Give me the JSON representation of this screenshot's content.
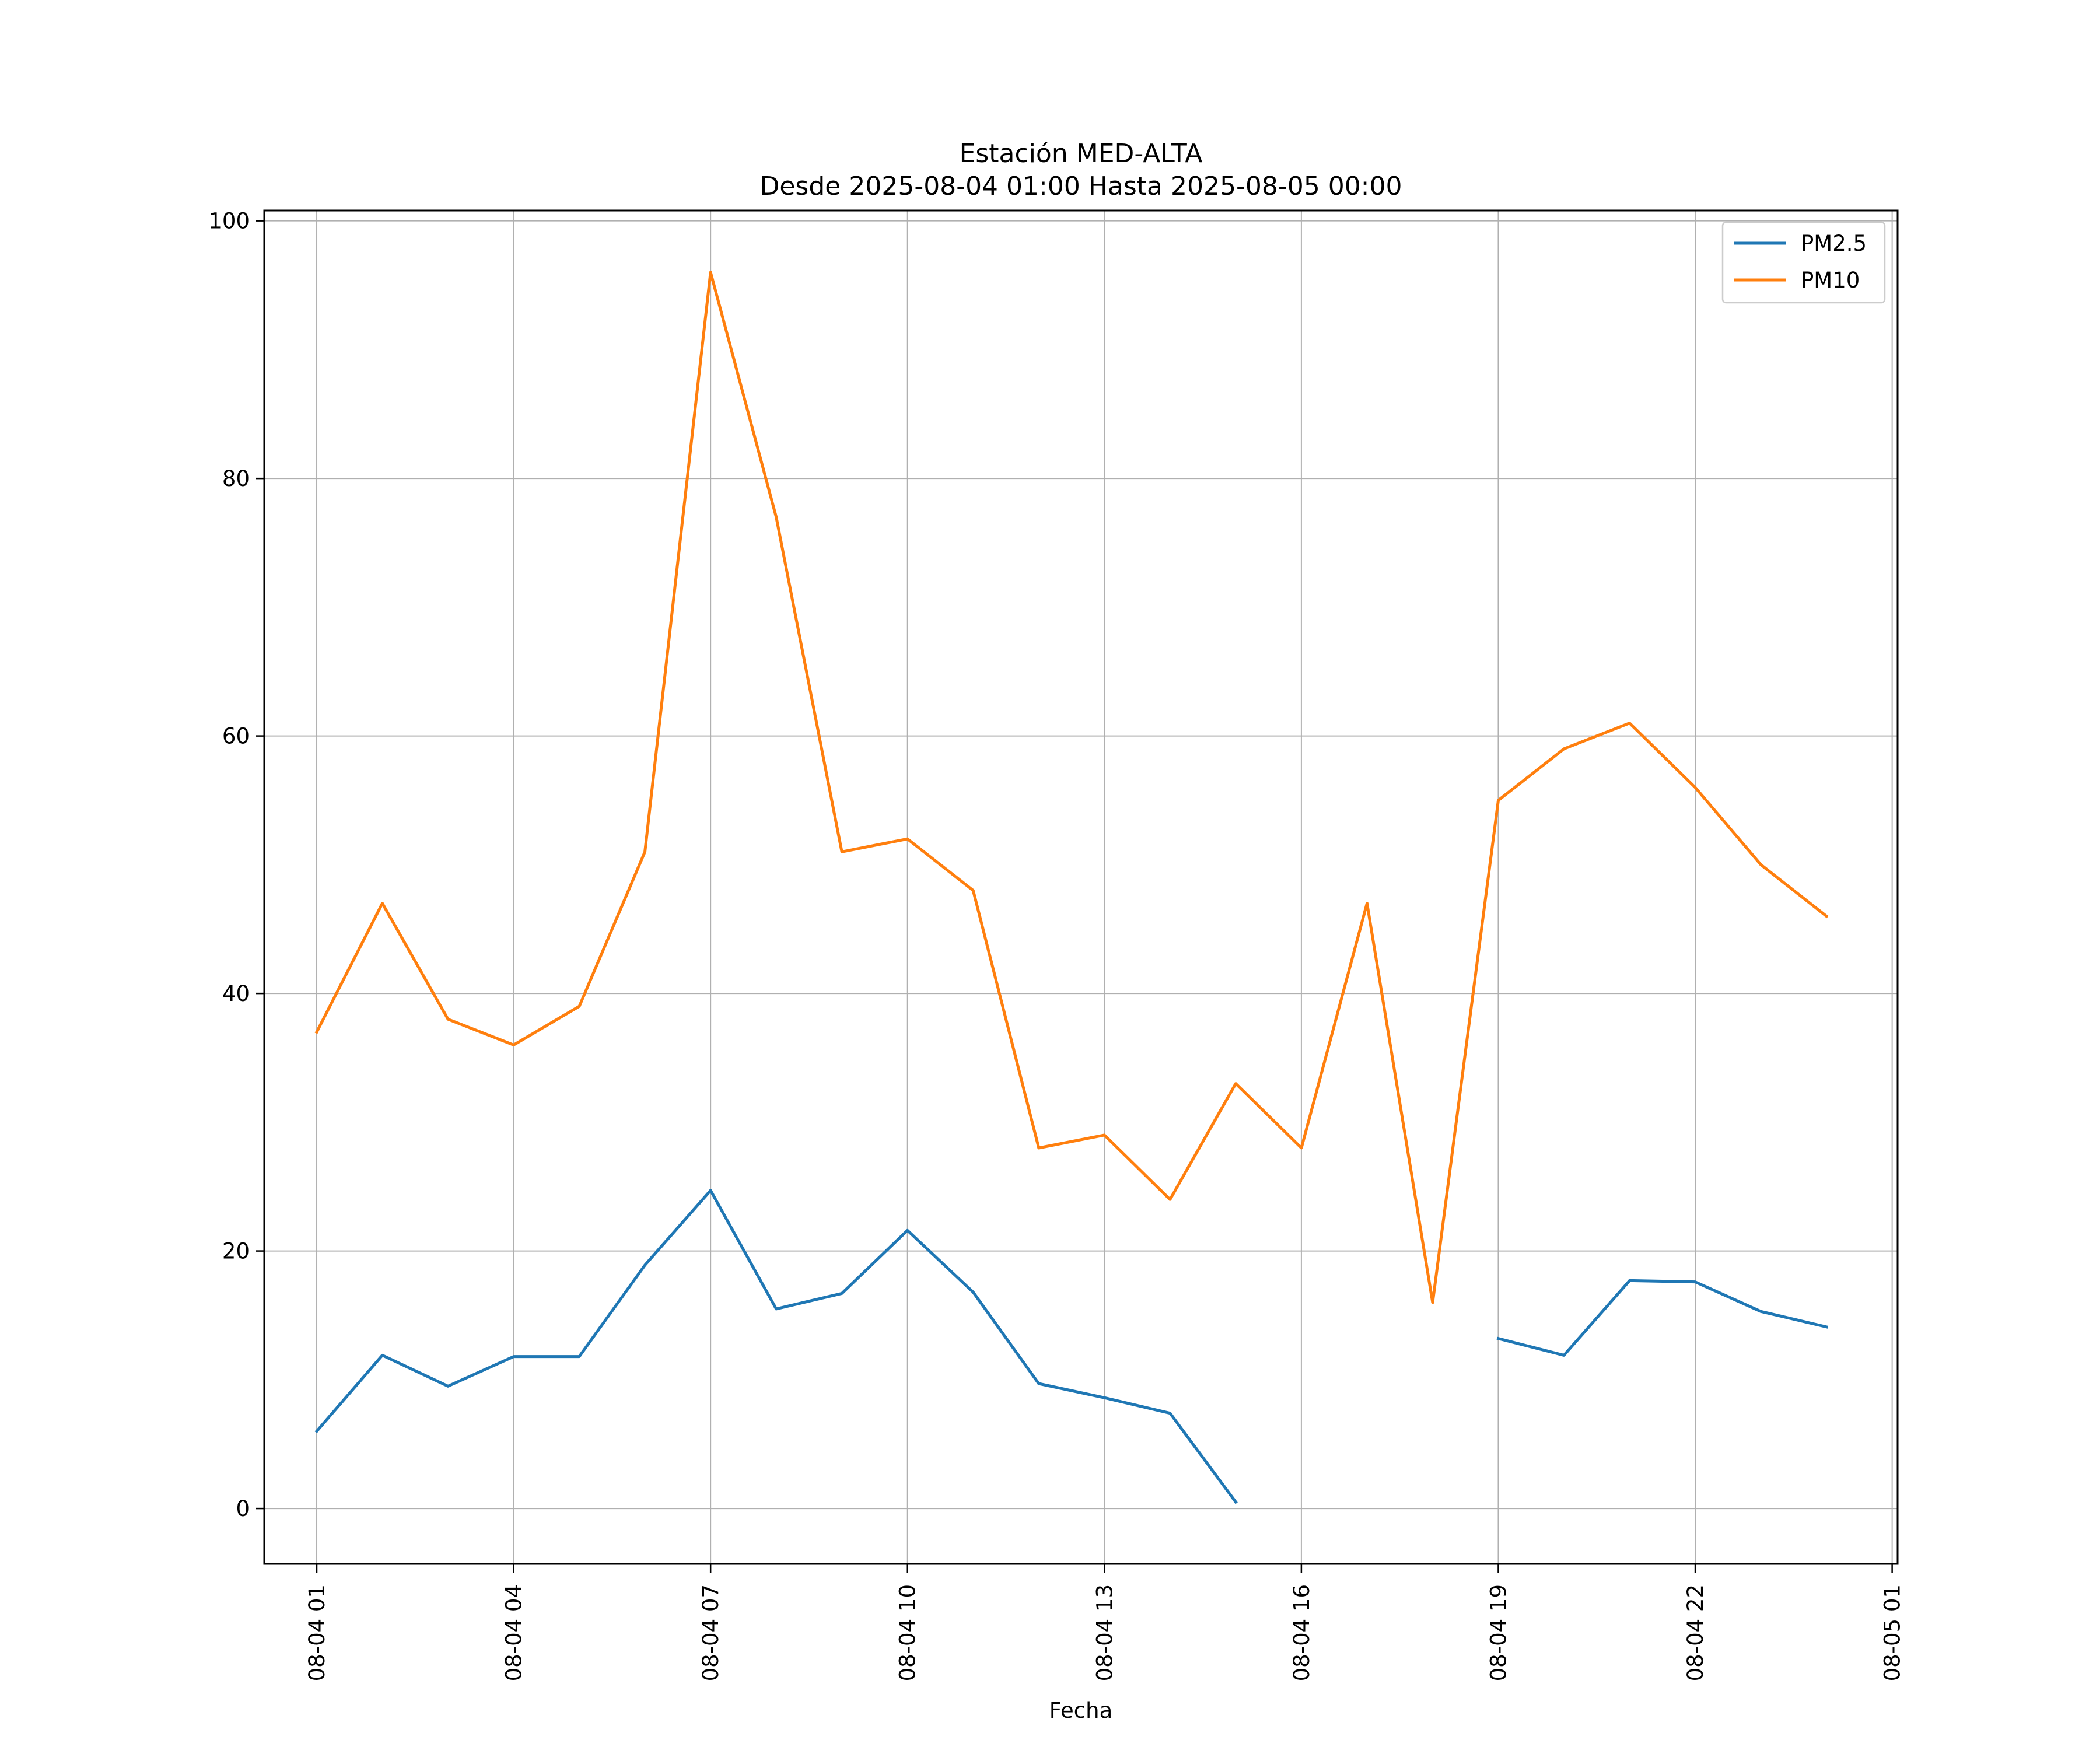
{
  "chart_data": {
    "type": "line",
    "title": "Estación MED-ALTA",
    "subtitle": "Desde 2025-08-04 01:00 Hasta 2025-08-05 00:00",
    "xlabel": "Fecha",
    "ylabel": "",
    "x": [
      "2025-08-04 01:00",
      "2025-08-04 02:00",
      "2025-08-04 03:00",
      "2025-08-04 04:00",
      "2025-08-04 05:00",
      "2025-08-04 06:00",
      "2025-08-04 07:00",
      "2025-08-04 08:00",
      "2025-08-04 09:00",
      "2025-08-04 10:00",
      "2025-08-04 11:00",
      "2025-08-04 12:00",
      "2025-08-04 13:00",
      "2025-08-04 14:00",
      "2025-08-04 15:00",
      "2025-08-04 16:00",
      "2025-08-04 17:00",
      "2025-08-04 18:00",
      "2025-08-04 19:00",
      "2025-08-04 20:00",
      "2025-08-04 21:00",
      "2025-08-04 22:00",
      "2025-08-04 23:00",
      "2025-08-05 00:00"
    ],
    "series": [
      {
        "name": "PM2.5",
        "color": "#1f77b4",
        "values": [
          6,
          11.9,
          9.5,
          11.8,
          11.8,
          18.9,
          24.7,
          15.5,
          16.7,
          21.6,
          16.8,
          9.7,
          8.6,
          7.4,
          0.5,
          null,
          null,
          null,
          13.2,
          11.9,
          17.7,
          17.6,
          15.3,
          14.1
        ]
      },
      {
        "name": "PM10",
        "color": "#ff7f0e",
        "values": [
          37,
          47,
          38,
          36,
          39,
          51,
          96,
          77,
          51,
          52,
          48,
          28,
          29,
          24,
          33,
          28,
          47,
          16,
          55,
          59,
          61,
          56,
          50,
          46
        ]
      }
    ],
    "xticks": [
      "08-04 01",
      "08-04 04",
      "08-04 07",
      "08-04 10",
      "08-04 13",
      "08-04 16",
      "08-04 19",
      "08-04 22",
      "08-05 01"
    ],
    "yticks": [
      "0",
      "20",
      "40",
      "60",
      "80",
      "100"
    ],
    "xlim": [
      "2025-08-04 00:12",
      "2025-08-05 01:05"
    ],
    "ylim": [
      -4.3,
      100.8
    ],
    "grid": true,
    "legend": "top-right"
  }
}
